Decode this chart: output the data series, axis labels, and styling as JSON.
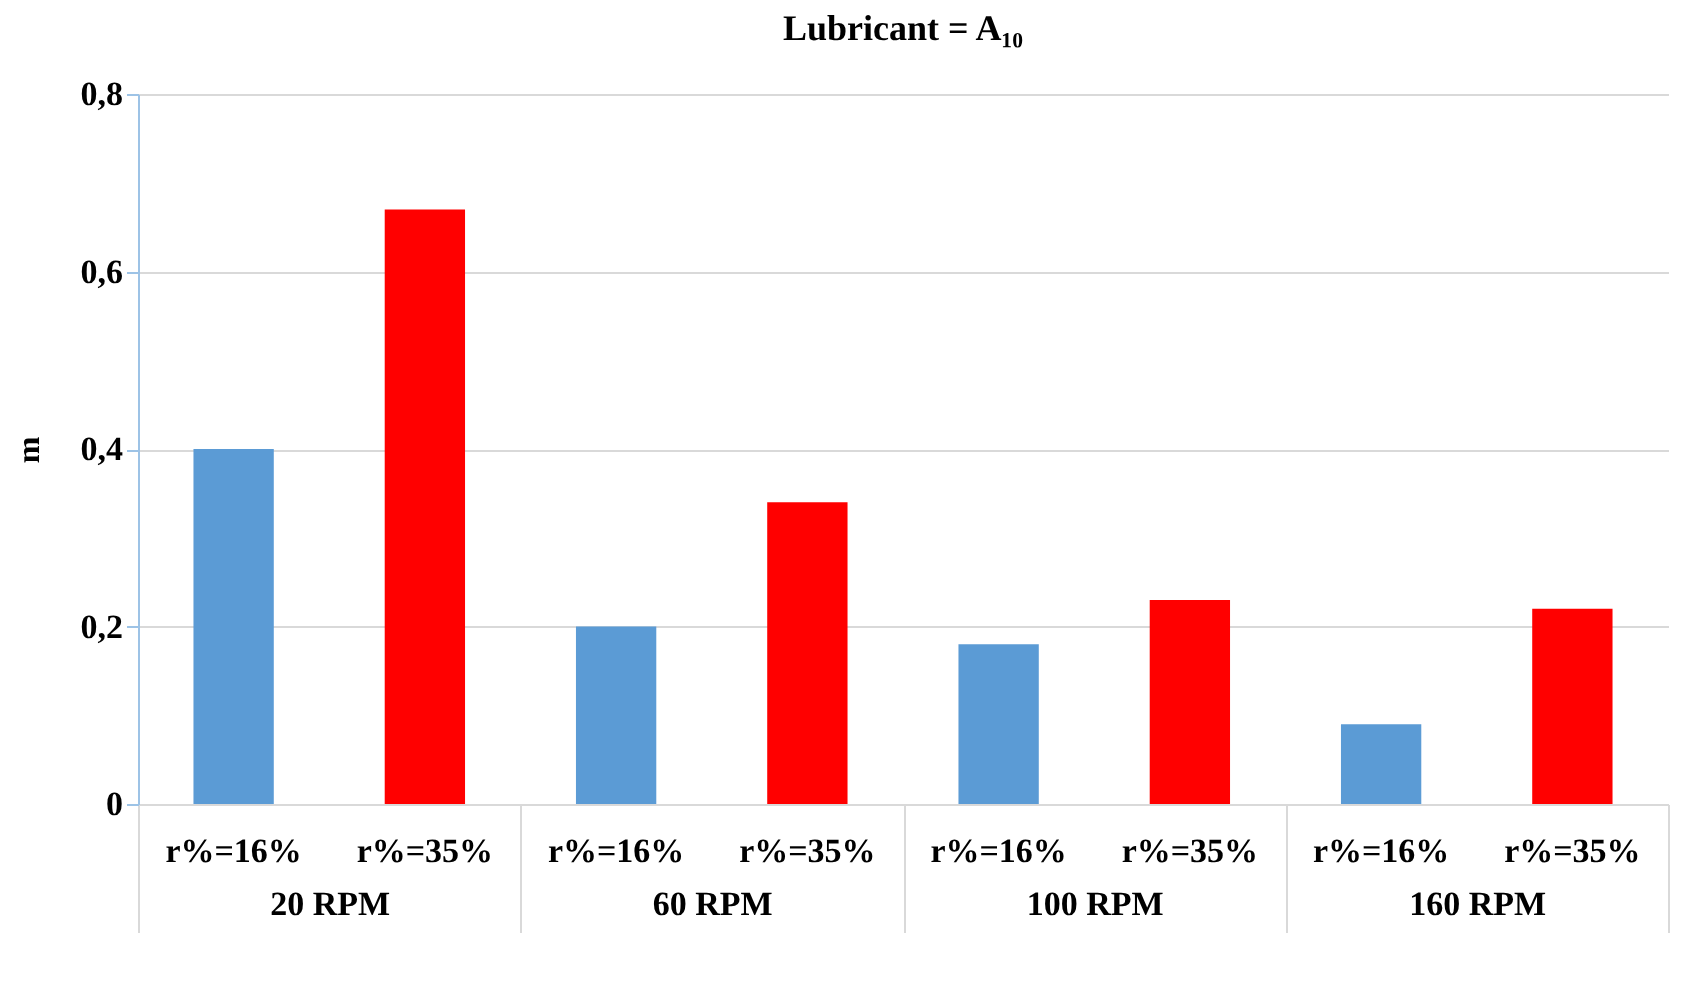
{
  "chart_data": {
    "type": "bar",
    "title": "Lubricant = A₁₀",
    "ylabel": "m",
    "categories": [
      "20 RPM",
      "60 RPM",
      "100 RPM",
      "160 RPM"
    ],
    "series": [
      {
        "name": "r%=16%",
        "color": "#5b9bd5",
        "values": [
          0.4,
          0.2,
          0.18,
          0.09
        ]
      },
      {
        "name": "r%=35%",
        "color": "#ff0000",
        "values": [
          0.67,
          0.34,
          0.23,
          0.22
        ]
      }
    ],
    "ylim": [
      0,
      0.8
    ],
    "yticks": [
      {
        "value": 0,
        "label": "0"
      },
      {
        "value": 0.2,
        "label": "0,2"
      },
      {
        "value": 0.4,
        "label": "0,4"
      },
      {
        "value": 0.6,
        "label": "0,6"
      },
      {
        "value": 0.8,
        "label": "0,8"
      }
    ],
    "grid": "y",
    "legend": false
  }
}
